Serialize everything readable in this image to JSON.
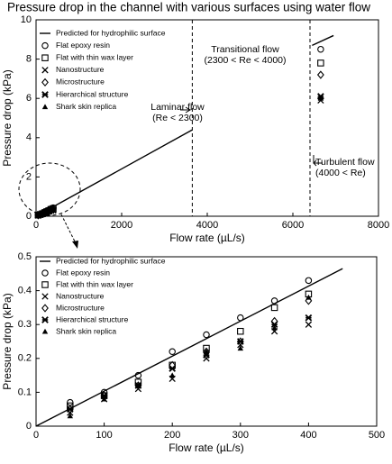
{
  "chart_data": [
    {
      "type": "scatter",
      "title": "Pressure drop in the channel with various surfaces using water flow",
      "x_label": "Flow rate (µL/s)",
      "y_label": "Pressure drop (kPa)",
      "xlim": [
        0,
        8000
      ],
      "xticks": [
        0,
        2000,
        4000,
        6000,
        8000
      ],
      "ylim": [
        0,
        10
      ],
      "yticks": [
        0,
        2,
        4,
        6,
        8,
        10
      ],
      "vlines": [
        3650,
        6400
      ],
      "annotations": [
        [
          "Transitional flow",
          "(2300 < Re < 4000)"
        ],
        [
          "Laminar flow",
          "(Re < 2300)"
        ],
        [
          "Turbulent flow",
          "(4000 < Re)"
        ]
      ],
      "series": [
        {
          "name": "Predicted for hydrophilic surface",
          "color": "#000000",
          "line": true,
          "x": [
            0,
            3650,
            5000,
            6450,
            6950
          ],
          "values": [
            0,
            4.4,
            null,
            8.7,
            9.2
          ]
        },
        {
          "name": "Flat epoxy resin",
          "color": "#000000",
          "marker": "circle",
          "x": [
            50,
            100,
            150,
            200,
            250,
            300,
            350,
            400,
            6650
          ],
          "values": [
            0.07,
            0.1,
            0.15,
            0.22,
            0.27,
            0.32,
            0.37,
            0.43,
            8.5
          ]
        },
        {
          "name": "Flat with thin wax layer",
          "color": "#000000",
          "marker": "square",
          "x": [
            50,
            100,
            150,
            200,
            250,
            300,
            350,
            400,
            6650
          ],
          "values": [
            0.06,
            0.09,
            0.13,
            0.18,
            0.23,
            0.28,
            0.35,
            0.39,
            7.8
          ]
        },
        {
          "name": "Nanostructure",
          "color": "#000000",
          "marker": "x",
          "x": [
            50,
            100,
            150,
            200,
            250,
            300,
            350,
            400,
            6650
          ],
          "values": [
            0.04,
            0.08,
            0.11,
            0.14,
            0.2,
            0.24,
            0.28,
            0.3,
            5.9
          ]
        },
        {
          "name": "Microstructure",
          "color": "#000000",
          "marker": "diamond",
          "x": [
            50,
            100,
            150,
            200,
            250,
            300,
            350,
            400,
            6650
          ],
          "values": [
            0.05,
            0.09,
            0.12,
            0.18,
            0.22,
            0.25,
            0.31,
            0.37,
            7.2
          ]
        },
        {
          "name": "Hierarchical structure",
          "color": "#000000",
          "marker": "asterisk",
          "x": [
            50,
            100,
            150,
            200,
            250,
            300,
            350,
            400,
            6650
          ],
          "values": [
            0.05,
            0.09,
            0.12,
            0.17,
            0.21,
            0.25,
            0.3,
            0.32,
            6.1
          ]
        },
        {
          "name": "Shark skin replica",
          "color": "#000000",
          "marker": "triangle",
          "x": [
            50,
            100,
            150,
            200,
            250,
            300,
            350,
            400,
            6650
          ],
          "values": [
            0.03,
            0.08,
            0.12,
            0.15,
            0.22,
            0.23,
            0.29,
            0.38,
            6.0
          ]
        }
      ]
    },
    {
      "type": "scatter",
      "x_label": "Flow rate (µL/s)",
      "y_label": "Pressure drop (kPa)",
      "xlim": [
        0,
        500
      ],
      "xticks": [
        0,
        100,
        200,
        300,
        400,
        500
      ],
      "ylim": [
        0,
        0.5
      ],
      "yticks": [
        0,
        0.1,
        0.2,
        0.3,
        0.4,
        0.5
      ],
      "series": [
        {
          "name": "Predicted for hydrophilic surface",
          "color": "#000000",
          "line": true,
          "x": [
            0,
            450
          ],
          "values": [
            0,
            0.465
          ]
        },
        {
          "name": "Flat epoxy resin",
          "color": "#000000",
          "marker": "circle",
          "x": [
            50,
            100,
            150,
            200,
            250,
            300,
            350,
            400
          ],
          "values": [
            0.07,
            0.1,
            0.15,
            0.22,
            0.27,
            0.32,
            0.37,
            0.43
          ]
        },
        {
          "name": "Flat with thin wax layer",
          "color": "#000000",
          "marker": "square",
          "x": [
            50,
            100,
            150,
            200,
            250,
            300,
            350,
            400
          ],
          "values": [
            0.06,
            0.09,
            0.13,
            0.18,
            0.23,
            0.28,
            0.35,
            0.39
          ]
        },
        {
          "name": "Nanostructure",
          "color": "#000000",
          "marker": "x",
          "x": [
            50,
            100,
            150,
            200,
            250,
            300,
            350,
            400
          ],
          "values": [
            0.04,
            0.08,
            0.11,
            0.14,
            0.2,
            0.24,
            0.28,
            0.3
          ]
        },
        {
          "name": "Microstructure",
          "color": "#000000",
          "marker": "diamond",
          "x": [
            50,
            100,
            150,
            200,
            250,
            300,
            350,
            400
          ],
          "values": [
            0.05,
            0.09,
            0.12,
            0.18,
            0.22,
            0.25,
            0.31,
            0.37
          ]
        },
        {
          "name": "Hierarchical structure",
          "color": "#000000",
          "marker": "asterisk",
          "x": [
            50,
            100,
            150,
            200,
            250,
            300,
            350,
            400
          ],
          "values": [
            0.05,
            0.09,
            0.12,
            0.17,
            0.21,
            0.25,
            0.3,
            0.32
          ]
        },
        {
          "name": "Shark skin replica",
          "color": "#000000",
          "marker": "triangle",
          "x": [
            50,
            100,
            150,
            200,
            250,
            300,
            350,
            400
          ],
          "values": [
            0.03,
            0.08,
            0.12,
            0.15,
            0.22,
            0.23,
            0.29,
            0.38
          ]
        }
      ]
    }
  ]
}
